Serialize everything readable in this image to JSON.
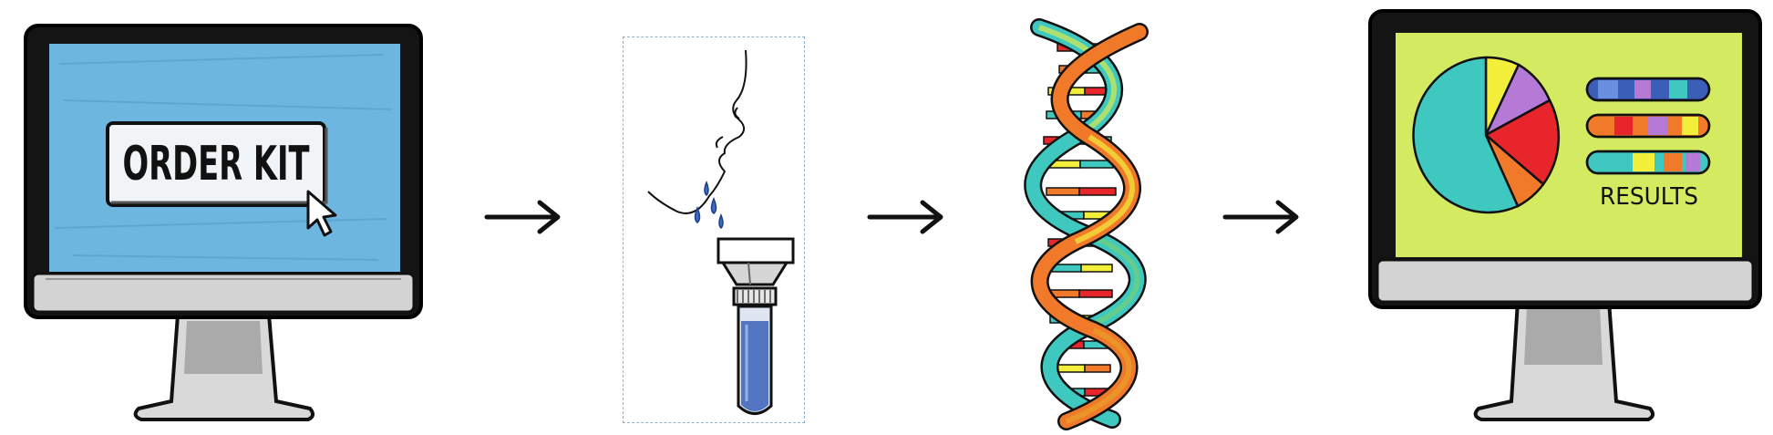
{
  "steps": [
    {
      "id": "order",
      "icon": "computer-monitor-icon",
      "button_label": "ORDER KIT"
    },
    {
      "id": "sample",
      "icon": "saliva-sample-tube-icon"
    },
    {
      "id": "analysis",
      "icon": "dna-double-helix-icon"
    },
    {
      "id": "results",
      "icon": "computer-monitor-icon",
      "results_label": "RESULTS"
    }
  ],
  "arrows": [
    "right-arrow-icon",
    "right-arrow-icon",
    "right-arrow-icon"
  ],
  "colors": {
    "outline": "#111111",
    "screen_blue": "#7fc3e6",
    "screen_blue_dark": "#4a9fd0",
    "screen_yellow": "#e4ef5a",
    "screen_green": "#bfe56a",
    "pie_teal": "#3fc8c0",
    "pie_yellow": "#f3ee3a",
    "pie_purple": "#b57ad6",
    "pie_red": "#e8252b",
    "pie_orange": "#f07a2a",
    "tube_blue": "#3b5fb8",
    "monitor_silver": "#d6d6d6"
  }
}
